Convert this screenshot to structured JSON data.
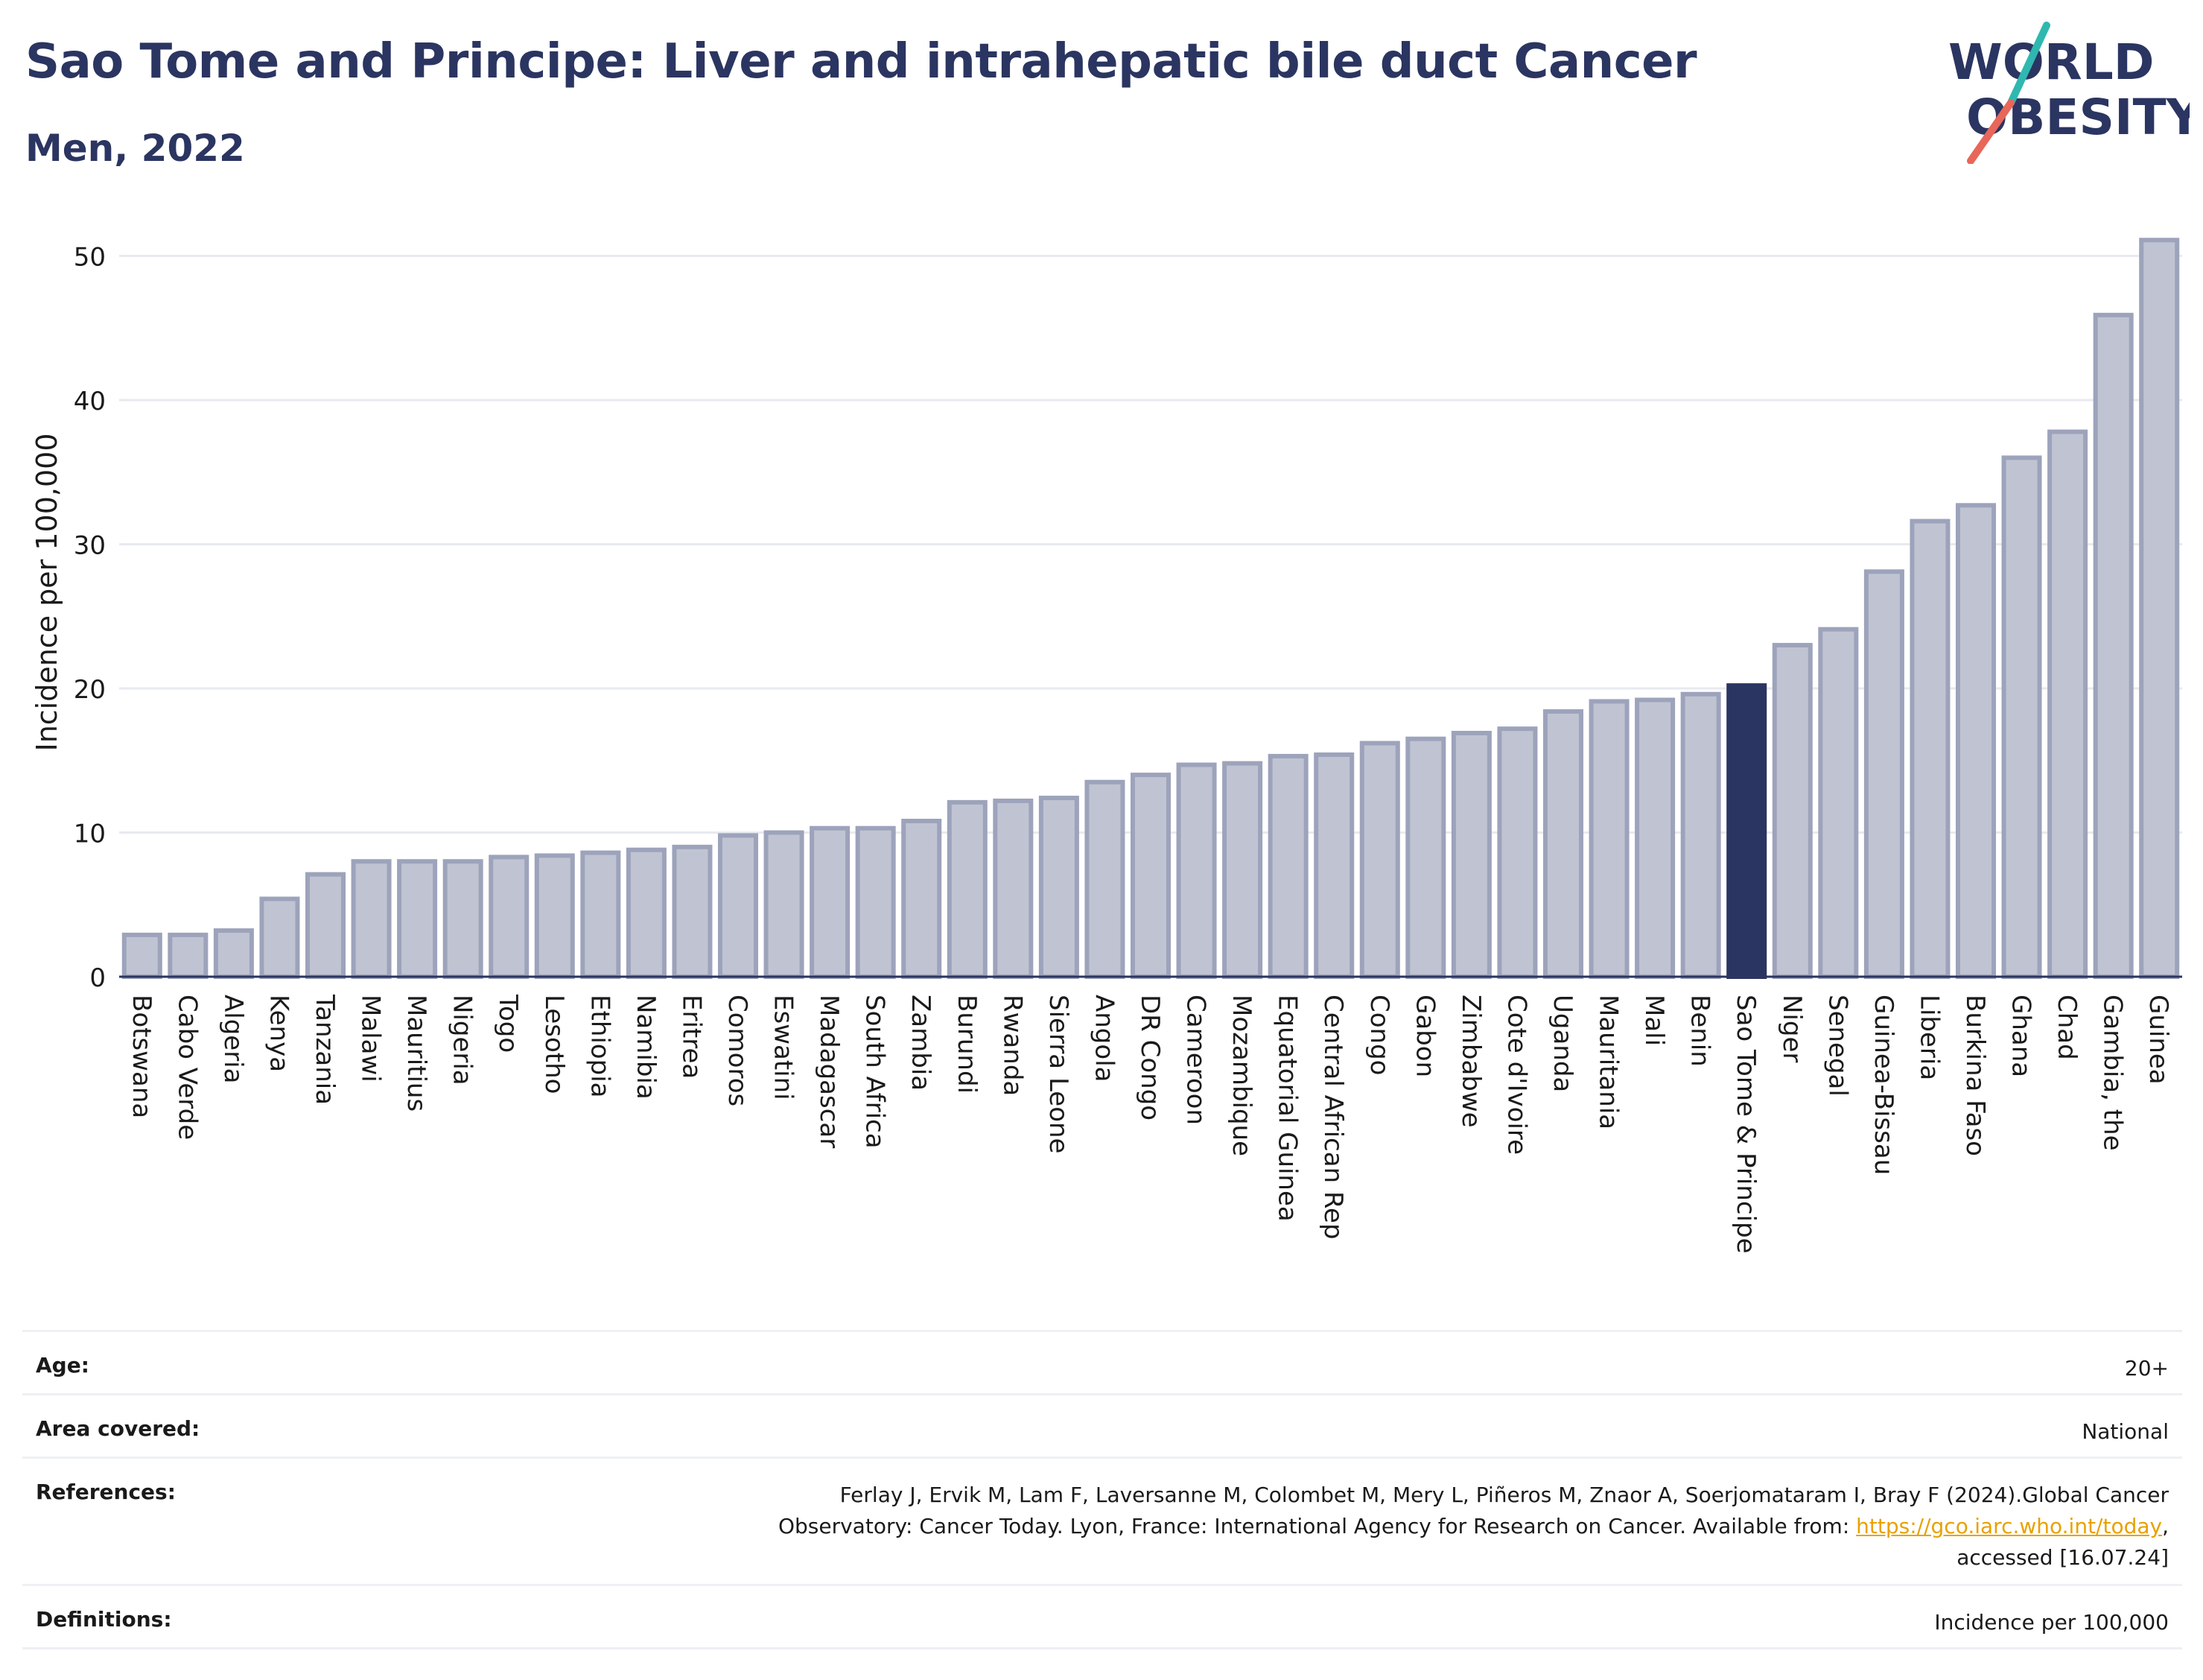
{
  "header": {
    "title": "Sao Tome and Principe: Liver and intrahepatic bile duct Cancer",
    "subtitle": "Men, 2022"
  },
  "logo": {
    "line1": "WORLD",
    "line2": "OBESITY",
    "colors": {
      "text": "#2b3561",
      "slash_teal": "#2fb8b0",
      "slash_coral": "#e8665a"
    }
  },
  "chart_data": {
    "type": "bar",
    "ylabel": "Incidence per 100,000",
    "xlabel": "",
    "ylim": [
      0,
      53
    ],
    "yticks": [
      0,
      10,
      20,
      30,
      40,
      50
    ],
    "grid": true,
    "highlight": "Sao Tome & Principe",
    "colors": {
      "bar": "#c0c4d2",
      "bar_edge": "#9da3bb",
      "highlight": "#2b3561",
      "grid": "#e8eaf0",
      "axis": "#2b3561"
    },
    "categories": [
      "Botswana",
      "Cabo Verde",
      "Algeria",
      "Kenya",
      "Tanzania",
      "Malawi",
      "Mauritius",
      "Nigeria",
      "Togo",
      "Lesotho",
      "Ethiopia",
      "Namibia",
      "Eritrea",
      "Comoros",
      "Eswatini",
      "Madagascar",
      "South Africa",
      "Zambia",
      "Burundi",
      "Rwanda",
      "Sierra Leone",
      "Angola",
      "DR Congo",
      "Cameroon",
      "Mozambique",
      "Equatorial Guinea",
      "Central African Rep",
      "Congo",
      "Gabon",
      "Zimbabwe",
      "Cote d'Ivoire",
      "Uganda",
      "Mauritania",
      "Mali",
      "Benin",
      "Sao Tome & Principe",
      "Niger",
      "Senegal",
      "Guinea-Bissau",
      "Liberia",
      "Burkina Faso",
      "Ghana",
      "Chad",
      "Gambia, the",
      "Guinea"
    ],
    "values": [
      2.9,
      2.9,
      3.2,
      5.4,
      7.1,
      8.0,
      8.0,
      8.0,
      8.3,
      8.4,
      8.6,
      8.8,
      9.0,
      9.8,
      10.0,
      10.3,
      10.3,
      10.8,
      12.1,
      12.2,
      12.4,
      13.5,
      14.0,
      14.7,
      14.8,
      15.3,
      15.4,
      16.2,
      16.5,
      16.9,
      17.2,
      18.4,
      19.1,
      19.2,
      19.6,
      20.2,
      23.0,
      24.1,
      28.1,
      31.6,
      32.7,
      36.0,
      37.8,
      45.9,
      51.1
    ]
  },
  "meta": {
    "age_label": "Age:",
    "age_value": "20+",
    "area_label": "Area covered:",
    "area_value": "National",
    "references_label": "References:",
    "references_line1": "Ferlay J, Ervik M, Lam F, Laversanne M, Colombet M, Mery L, Piñeros M, Znaor A, Soerjomataram I, Bray F (2024).Global Cancer",
    "references_line2_pre": "Observatory: Cancer Today. Lyon, France: International Agency for Research on Cancer. Available from: ",
    "references_link": "https://gco.iarc.who.int/today",
    "references_line2_post": ",",
    "references_line3": "accessed [16.07.24]",
    "definitions_label": "Definitions:",
    "definitions_value": "Incidence per 100,000"
  }
}
